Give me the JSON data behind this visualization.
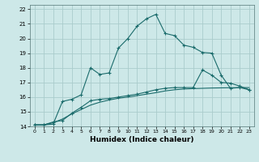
{
  "xlabel": "Humidex (Indice chaleur)",
  "background_color": "#cde8e8",
  "grid_color": "#aacccc",
  "line_color": "#1a6b6b",
  "xlim": [
    -0.5,
    23.5
  ],
  "ylim": [
    14,
    22.3
  ],
  "xticks": [
    0,
    1,
    2,
    3,
    4,
    5,
    6,
    7,
    8,
    9,
    10,
    11,
    12,
    13,
    14,
    15,
    16,
    17,
    18,
    19,
    20,
    21,
    22,
    23
  ],
  "yticks": [
    14,
    15,
    16,
    17,
    18,
    19,
    20,
    21,
    22
  ],
  "line1_x": [
    0,
    1,
    2,
    3,
    4,
    5,
    6,
    7,
    8,
    9,
    10,
    11,
    12,
    13,
    14,
    15,
    16,
    17,
    18,
    19,
    20,
    21,
    22,
    23
  ],
  "line1_y": [
    14.1,
    14.1,
    14.15,
    15.7,
    15.85,
    16.15,
    18.0,
    17.55,
    17.65,
    19.35,
    20.0,
    20.85,
    21.35,
    21.65,
    20.35,
    20.2,
    19.55,
    19.4,
    19.05,
    19.0,
    17.5,
    16.6,
    16.65,
    16.5
  ],
  "line2_x": [
    0,
    1,
    2,
    3,
    4,
    5,
    6,
    7,
    8,
    9,
    10,
    11,
    12,
    13,
    14,
    15,
    16,
    17,
    18,
    19,
    20,
    21,
    22,
    23
  ],
  "line2_y": [
    14.1,
    14.1,
    14.3,
    14.4,
    14.9,
    15.3,
    15.75,
    15.85,
    15.9,
    16.0,
    16.1,
    16.2,
    16.35,
    16.5,
    16.6,
    16.65,
    16.65,
    16.65,
    17.85,
    17.5,
    17.0,
    16.95,
    16.75,
    16.5
  ],
  "line3_x": [
    0,
    1,
    2,
    3,
    4,
    5,
    6,
    7,
    8,
    9,
    10,
    11,
    12,
    13,
    14,
    15,
    16,
    17,
    18,
    19,
    20,
    21,
    22,
    23
  ],
  "line3_y": [
    14.1,
    14.1,
    14.25,
    14.5,
    14.85,
    15.15,
    15.45,
    15.65,
    15.8,
    15.92,
    16.0,
    16.1,
    16.2,
    16.3,
    16.42,
    16.5,
    16.55,
    16.58,
    16.6,
    16.62,
    16.63,
    16.64,
    16.65,
    16.65
  ]
}
